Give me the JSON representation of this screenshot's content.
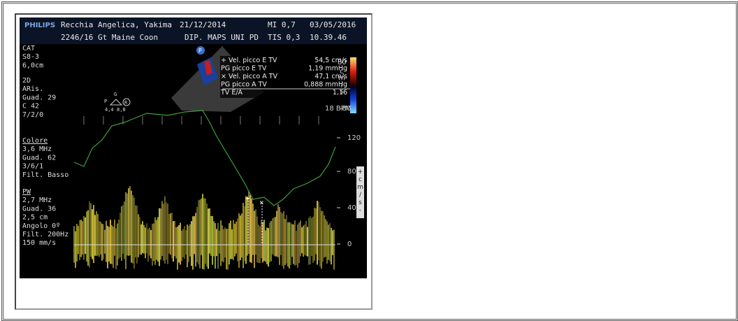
{
  "header": {
    "brand": "PHILIPS",
    "patient": "Recchia Angelica, Yakima",
    "birth_date": "21/12/2014",
    "mi": "MI 0,7",
    "exam_date": "03/05/2016",
    "patient_id": "2246/16 Gt Maine Coon",
    "department": "DIP. MAPS UNI PD",
    "tis": "TIS 0,3",
    "time": "10.39.46"
  },
  "settings": [
    [
      "CAT",
      "S8-3",
      "6,0cm"
    ],
    [
      "2D",
      "ARis.",
      "Guad. 29",
      "C 42",
      "7/2/0"
    ],
    [
      "Colore",
      "3,6 MHz",
      "Guad. 62",
      "3/6/1",
      "Filt. Basso"
    ],
    [
      "PW",
      "2,7 MHz",
      "Guad. 36",
      "2,5 cm",
      "Angolo 0º",
      "Filt. 200Hz",
      "150 mm/s"
    ]
  ],
  "probe_icon": {
    "top": "G",
    "left": "P",
    "right": "R",
    "bottom_left": "4,4",
    "bottom_right": "8,8"
  },
  "orientation_marker": "P",
  "measurements": [
    {
      "label": "+ Vel. picco E TV",
      "value": "54,5 cm/s"
    },
    {
      "label": "PG picco E TV",
      "value": "1,19 mmHg"
    },
    {
      "label": "× Vel. picco A TV",
      "value": "47,1 cm/s"
    },
    {
      "label": "PG picco A TV",
      "value": "0,888 mmHg"
    },
    {
      "label": "TV E/A",
      "value": "1,16"
    }
  ],
  "color_scale": {
    "top": "80",
    "bottom": "-80",
    "unit_letters": [
      "c",
      "m",
      "/",
      "s"
    ]
  },
  "heart_rate": "18 BPM",
  "doppler_scale": {
    "ticks": [
      "120",
      "80",
      "40",
      "0"
    ],
    "unit_letters": [
      "+",
      "c",
      "m",
      "/",
      "s",
      "-"
    ]
  }
}
